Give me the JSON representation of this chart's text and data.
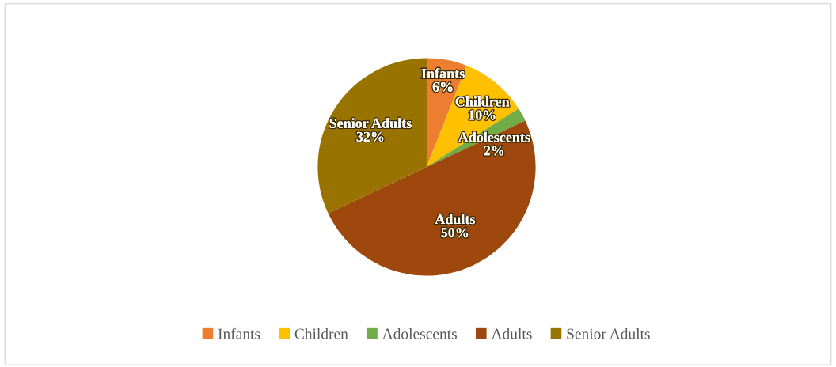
{
  "chart_data": {
    "type": "pie",
    "categories": [
      "Infants",
      "Children",
      "Adolescents",
      "Adults",
      "Senior Adults"
    ],
    "values": [
      6,
      10,
      2,
      50,
      32
    ],
    "colors": [
      "#ed7d31",
      "#ffc000",
      "#70ad47",
      "#9e480e",
      "#997300"
    ],
    "value_labels": [
      "6%",
      "10%",
      "2%",
      "50%",
      "32%"
    ],
    "legend": "bottom"
  }
}
